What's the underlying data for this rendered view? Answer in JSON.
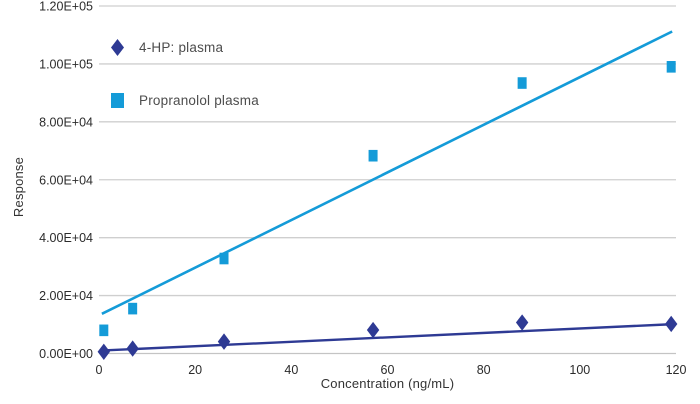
{
  "chart_data": {
    "type": "scatter",
    "xlabel": "Concentration (ng/mL)",
    "ylabel": "Response",
    "xlim": [
      0,
      120
    ],
    "ylim": [
      0,
      120000
    ],
    "x_ticks": [
      0,
      20,
      40,
      60,
      80,
      100,
      120
    ],
    "x_tick_labels": [
      "0",
      "20",
      "40",
      "60",
      "80",
      "100",
      "120"
    ],
    "y_ticks": [
      0,
      20000,
      40000,
      60000,
      80000,
      100000,
      120000
    ],
    "y_tick_labels": [
      "0.00E+00",
      "2.00E+04",
      "4.00E+04",
      "6.00E+04",
      "8.00E+04",
      "1.00E+05",
      "1.20E+05"
    ],
    "grid": "horizontal-only",
    "legend_position": "inside-top-left",
    "series": [
      {
        "name": "4-HP: plasma",
        "marker": "diamond",
        "color": "#2e3a94",
        "points": [
          [
            1,
            600
          ],
          [
            7,
            1700
          ],
          [
            26,
            4100
          ],
          [
            57,
            8100
          ],
          [
            88,
            10700
          ],
          [
            119,
            10200
          ]
        ],
        "trendline": {
          "x1": 0.3,
          "y1": 1000,
          "x2": 119.0,
          "y2": 10100
        }
      },
      {
        "name": "Propranolol plasma",
        "marker": "square",
        "color": "#149bd8",
        "points": [
          [
            1,
            8000
          ],
          [
            7,
            15500
          ],
          [
            26,
            32800
          ],
          [
            57,
            68300
          ],
          [
            88,
            93400
          ],
          [
            119,
            99000
          ]
        ],
        "trendline": {
          "x1": 0.6,
          "y1": 13700,
          "x2": 119.2,
          "y2": 111200
        }
      }
    ],
    "colors": {
      "grid_line": "#cfcfcf",
      "axis_line": "#c4c4c4",
      "tick_text": "#2b2b2b",
      "axis_title_text": "#333333",
      "legend_text": "#4d4d4d",
      "background": "#ffffff"
    }
  }
}
